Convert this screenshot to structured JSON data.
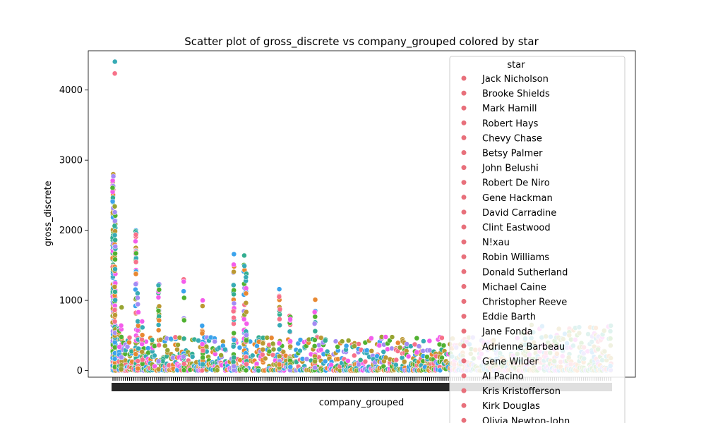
{
  "chart_data": {
    "type": "scatter",
    "title": "Scatter plot of gross_discrete vs company_grouped colored by star",
    "xlabel": "company_grouped",
    "ylabel": "gross_discrete",
    "ylim": [
      -95,
      4560
    ],
    "yticks": [
      0,
      1000,
      2000,
      3000,
      4000
    ],
    "x_category_count": 240,
    "x_tick_labels_note": "x-axis tick labels are illegible (overlapping)",
    "grid": false,
    "legend": {
      "title": "star",
      "placement": "upper-right",
      "color": "#e8707b",
      "entries": [
        "Jack Nicholson",
        "Brooke Shields",
        "Mark Hamill",
        "Robert Hays",
        "Chevy Chase",
        "Betsy Palmer",
        "John Belushi",
        "Robert De Niro",
        "Gene Hackman",
        "David Carradine",
        "Clint Eastwood",
        "N!xau",
        "Robin Williams",
        "Donald Sutherland",
        "Michael Caine",
        "Christopher Reeve",
        "Eddie Barth",
        "Jane Fonda",
        "Adrienne Barbeau",
        "Gene Wilder",
        "Al Pacino",
        "Kris Kristofferson",
        "Kirk Douglas",
        "Olivia Newton-John"
      ]
    },
    "palette": [
      "#f77189",
      "#e88831",
      "#bb9832",
      "#97a431",
      "#50b131",
      "#34ae91",
      "#37abb5",
      "#3ba3ec",
      "#a48cf4",
      "#f45deb"
    ],
    "clusters": [
      {
        "x": 0,
        "n": 120,
        "max": 2800
      },
      {
        "x": 0,
        "n": 20,
        "max": 2630
      },
      {
        "x": 1,
        "n": 90,
        "max": 2340
      },
      {
        "x": 1,
        "n": 1,
        "min": 4400,
        "max": 4410
      },
      {
        "x": 1,
        "n": 1,
        "min": 4230,
        "max": 4245
      },
      {
        "x": 3,
        "n": 25,
        "max": 600
      },
      {
        "x": 4,
        "n": 12,
        "max": 900
      },
      {
        "x": 11,
        "n": 60,
        "max": 2000
      },
      {
        "x": 11,
        "n": 4,
        "min": 1600,
        "max": 1700
      },
      {
        "x": 12,
        "n": 20,
        "max": 1100
      },
      {
        "x": 14,
        "n": 10,
        "max": 700
      },
      {
        "x": 22,
        "n": 20,
        "max": 1230
      },
      {
        "x": 34,
        "n": 20,
        "max": 1300
      },
      {
        "x": 43,
        "n": 20,
        "max": 1000
      },
      {
        "x": 58,
        "n": 40,
        "max": 1660
      },
      {
        "x": 63,
        "n": 40,
        "max": 1640
      },
      {
        "x": 64,
        "n": 30,
        "max": 1380
      },
      {
        "x": 80,
        "n": 20,
        "max": 1160
      },
      {
        "x": 85,
        "n": 20,
        "max": 780
      },
      {
        "x": 97,
        "n": 15,
        "max": 1010
      }
    ]
  }
}
